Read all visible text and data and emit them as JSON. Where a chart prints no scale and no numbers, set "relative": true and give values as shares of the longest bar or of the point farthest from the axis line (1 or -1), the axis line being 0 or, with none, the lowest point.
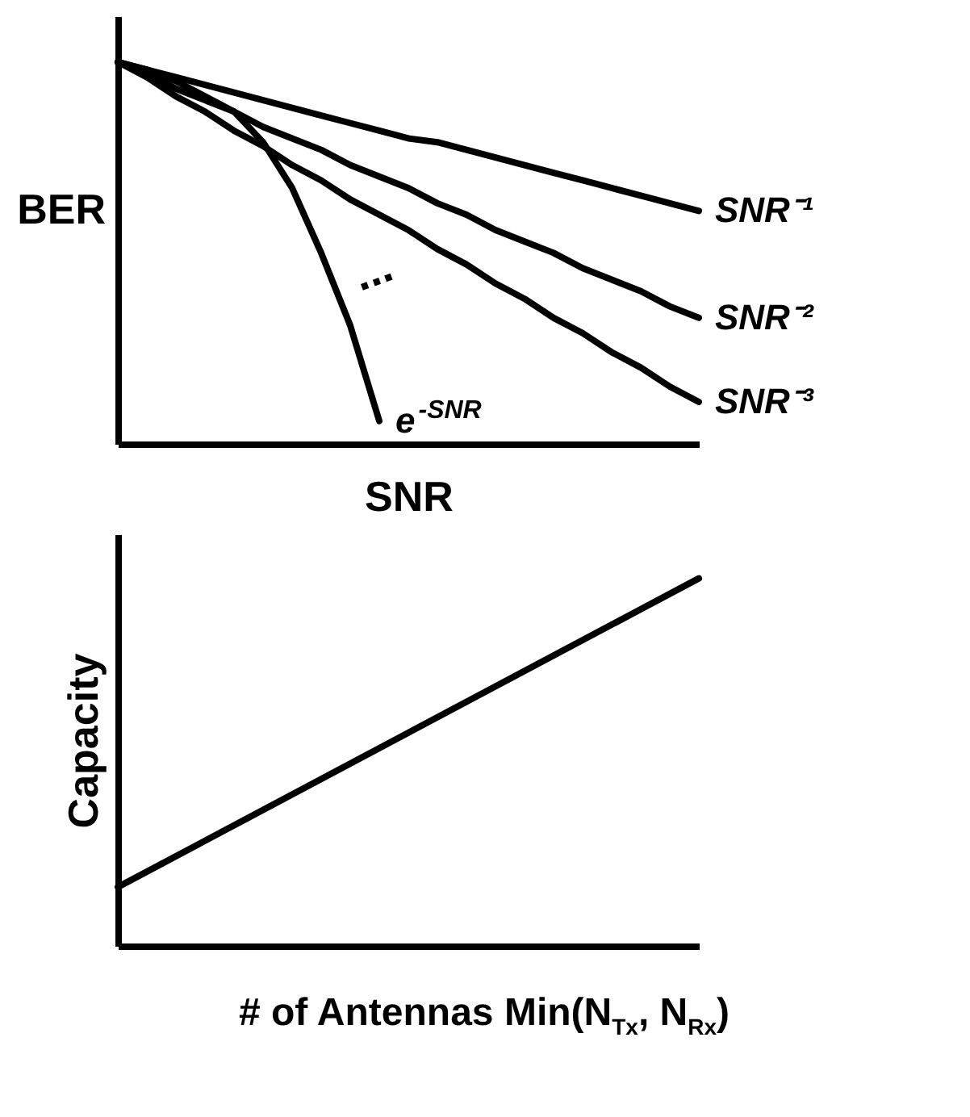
{
  "chart_data": [
    {
      "type": "line",
      "relative": true,
      "xlabel": "SNR",
      "ylabel": "BER",
      "categories": [
        null,
        null,
        null,
        null,
        null,
        null,
        null,
        null,
        null,
        null,
        null,
        null,
        null,
        null,
        null,
        null,
        null,
        null,
        null,
        null,
        null
      ],
      "series": [
        {
          "name": "SNR⁻¹",
          "color": "#000000",
          "values": [
            1,
            0.98,
            0.96,
            0.94,
            0.92,
            0.9,
            0.88,
            0.86,
            0.84,
            0.82,
            0.8,
            0.79,
            0.77,
            0.75,
            0.73,
            0.71,
            0.69,
            0.67,
            0.65,
            0.63,
            0.61
          ]
        },
        {
          "name": "SNR⁻²",
          "color": "#000000",
          "values": [
            1,
            0.97,
            0.93,
            0.9,
            0.87,
            0.83,
            0.8,
            0.77,
            0.73,
            0.7,
            0.67,
            0.63,
            0.6,
            0.56,
            0.53,
            0.5,
            0.46,
            0.43,
            0.4,
            0.36,
            0.33
          ]
        },
        {
          "name": "SNR⁻³",
          "color": "#000000",
          "values": [
            1,
            0.96,
            0.91,
            0.87,
            0.82,
            0.78,
            0.73,
            0.69,
            0.64,
            0.6,
            0.56,
            0.51,
            0.47,
            0.42,
            0.38,
            0.33,
            0.29,
            0.24,
            0.2,
            0.15,
            0.11
          ]
        },
        {
          "name": "e$^{-SNR}$",
          "color": "#000000",
          "values": [
            1,
            0.98,
            0.95,
            0.91,
            0.87,
            0.79,
            0.67,
            0.5,
            0.31,
            0.06,
            null,
            null,
            null,
            null,
            null,
            null,
            null,
            null,
            null,
            null,
            null
          ]
        }
      ],
      "annotations": [
        "..."
      ]
    },
    {
      "type": "line",
      "relative": true,
      "xlabel": "# of Antennas Min(N$_{Tx}$, N$_{Rx}$)",
      "ylabel": "Capacity",
      "categories": [
        null,
        null
      ],
      "series": [
        {
          "color": "#000000",
          "values": [
            0.16,
            1
          ]
        }
      ]
    }
  ]
}
